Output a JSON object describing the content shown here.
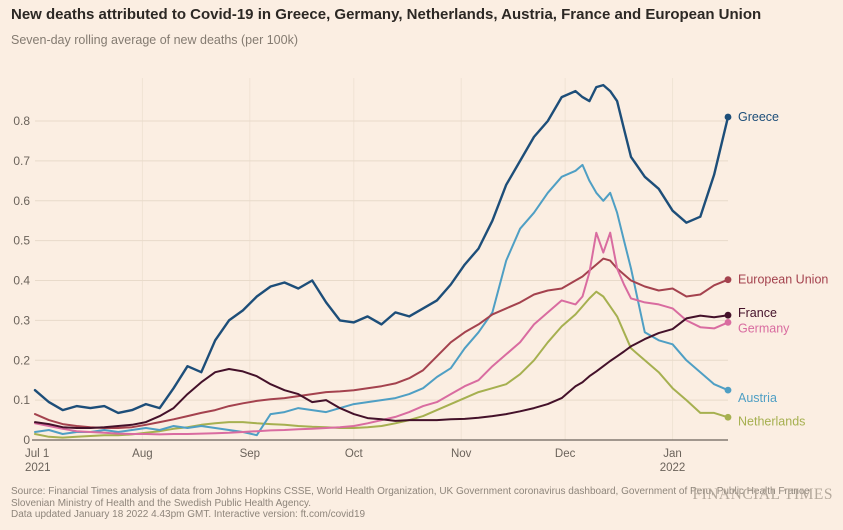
{
  "chart_data": {
    "type": "line",
    "title": "New deaths attributed to Covid-19 in Greece, Germany, Netherlands, Austria, France and European Union",
    "subtitle": "Seven-day rolling average of new deaths (per 100k)",
    "x_range": [
      "2021-07-01",
      "2022-01-17"
    ],
    "x_days": [
      0,
      4,
      8,
      12,
      16,
      20,
      24,
      28,
      32,
      36,
      40,
      44,
      48,
      52,
      56,
      60,
      64,
      68,
      72,
      76,
      80,
      84,
      88,
      92,
      96,
      100,
      104,
      108,
      112,
      116,
      120,
      124,
      128,
      132,
      136,
      140,
      144,
      148,
      152,
      156,
      158,
      160,
      162,
      164,
      166,
      168,
      170,
      172,
      176,
      180,
      184,
      188,
      192,
      196,
      200
    ],
    "x_ticks": [
      {
        "day": 0,
        "line1": "Jul 1",
        "line2": "2021"
      },
      {
        "day": 31,
        "line1": "Aug"
      },
      {
        "day": 62,
        "line1": "Sep"
      },
      {
        "day": 92,
        "line1": "Oct"
      },
      {
        "day": 123,
        "line1": "Nov"
      },
      {
        "day": 153,
        "line1": "Dec"
      },
      {
        "day": 184,
        "line1": "Jan",
        "line2": "2022"
      }
    ],
    "ylim": [
      0,
      0.9
    ],
    "y_ticks": [
      0,
      0.1,
      0.2,
      0.3,
      0.4,
      0.5,
      0.6,
      0.7,
      0.8
    ],
    "grid": true,
    "legend_position": "right-of-line-ends",
    "series": [
      {
        "name": "Greece",
        "color": "#1D4E79",
        "values": [
          0.125,
          0.095,
          0.075,
          0.085,
          0.08,
          0.085,
          0.068,
          0.075,
          0.09,
          0.08,
          0.13,
          0.185,
          0.17,
          0.25,
          0.3,
          0.325,
          0.36,
          0.385,
          0.395,
          0.38,
          0.4,
          0.345,
          0.3,
          0.295,
          0.31,
          0.29,
          0.32,
          0.31,
          0.33,
          0.35,
          0.39,
          0.44,
          0.48,
          0.55,
          0.64,
          0.7,
          0.76,
          0.8,
          0.86,
          0.875,
          0.86,
          0.85,
          0.885,
          0.89,
          0.875,
          0.85,
          0.78,
          0.71,
          0.66,
          0.63,
          0.575,
          0.545,
          0.56,
          0.665,
          0.81
        ]
      },
      {
        "name": "European Union",
        "color": "#A4424E",
        "values": [
          0.065,
          0.05,
          0.04,
          0.035,
          0.032,
          0.03,
          0.03,
          0.032,
          0.038,
          0.045,
          0.052,
          0.06,
          0.068,
          0.075,
          0.085,
          0.092,
          0.098,
          0.102,
          0.105,
          0.11,
          0.115,
          0.12,
          0.122,
          0.125,
          0.13,
          0.135,
          0.142,
          0.155,
          0.175,
          0.21,
          0.245,
          0.27,
          0.29,
          0.315,
          0.33,
          0.345,
          0.365,
          0.375,
          0.38,
          0.4,
          0.41,
          0.425,
          0.44,
          0.455,
          0.45,
          0.43,
          0.415,
          0.4,
          0.385,
          0.375,
          0.38,
          0.36,
          0.365,
          0.388,
          0.402
        ]
      },
      {
        "name": "France",
        "color": "#44112A",
        "values": [
          0.045,
          0.04,
          0.032,
          0.03,
          0.03,
          0.032,
          0.035,
          0.038,
          0.045,
          0.06,
          0.08,
          0.115,
          0.145,
          0.17,
          0.178,
          0.172,
          0.16,
          0.14,
          0.125,
          0.115,
          0.095,
          0.1,
          0.08,
          0.065,
          0.055,
          0.052,
          0.048,
          0.05,
          0.05,
          0.05,
          0.052,
          0.053,
          0.056,
          0.06,
          0.065,
          0.072,
          0.08,
          0.09,
          0.105,
          0.135,
          0.145,
          0.16,
          0.172,
          0.185,
          0.198,
          0.21,
          0.222,
          0.235,
          0.253,
          0.268,
          0.278,
          0.305,
          0.312,
          0.308,
          0.313
        ]
      },
      {
        "name": "Germany",
        "color": "#D96CA0",
        "values": [
          0.042,
          0.035,
          0.028,
          0.022,
          0.02,
          0.018,
          0.016,
          0.015,
          0.015,
          0.014,
          0.015,
          0.015,
          0.016,
          0.017,
          0.018,
          0.02,
          0.022,
          0.024,
          0.025,
          0.027,
          0.028,
          0.03,
          0.032,
          0.035,
          0.042,
          0.05,
          0.058,
          0.07,
          0.085,
          0.095,
          0.115,
          0.135,
          0.15,
          0.185,
          0.215,
          0.245,
          0.29,
          0.32,
          0.35,
          0.34,
          0.36,
          0.42,
          0.52,
          0.47,
          0.52,
          0.43,
          0.39,
          0.355,
          0.345,
          0.34,
          0.33,
          0.3,
          0.283,
          0.28,
          0.295
        ]
      },
      {
        "name": "Austria",
        "color": "#4F9FC4",
        "values": [
          0.02,
          0.025,
          0.015,
          0.02,
          0.02,
          0.025,
          0.02,
          0.025,
          0.03,
          0.025,
          0.035,
          0.03,
          0.035,
          0.03,
          0.025,
          0.02,
          0.012,
          0.065,
          0.07,
          0.08,
          0.075,
          0.07,
          0.08,
          0.09,
          0.095,
          0.1,
          0.105,
          0.115,
          0.13,
          0.158,
          0.18,
          0.23,
          0.27,
          0.32,
          0.45,
          0.53,
          0.57,
          0.62,
          0.66,
          0.675,
          0.69,
          0.65,
          0.62,
          0.6,
          0.62,
          0.57,
          0.5,
          0.43,
          0.27,
          0.25,
          0.24,
          0.2,
          0.17,
          0.14,
          0.125
        ]
      },
      {
        "name": "Netherlands",
        "color": "#A6B050",
        "values": [
          0.015,
          0.008,
          0.006,
          0.008,
          0.01,
          0.012,
          0.012,
          0.014,
          0.018,
          0.022,
          0.028,
          0.032,
          0.038,
          0.042,
          0.045,
          0.045,
          0.042,
          0.04,
          0.038,
          0.035,
          0.033,
          0.032,
          0.03,
          0.03,
          0.032,
          0.035,
          0.042,
          0.05,
          0.06,
          0.075,
          0.09,
          0.105,
          0.12,
          0.13,
          0.14,
          0.165,
          0.2,
          0.245,
          0.285,
          0.315,
          0.335,
          0.355,
          0.372,
          0.36,
          0.335,
          0.31,
          0.27,
          0.23,
          0.2,
          0.17,
          0.13,
          0.1,
          0.068,
          0.068,
          0.057
        ]
      }
    ]
  },
  "footer": {
    "source_line1": "Source: Financial Times analysis of data from Johns Hopkins CSSE, World Health Organization, UK Government coronavirus dashboard, Government of Peru, Public Health France,",
    "source_line2": "Slovenian Ministry of Health and the Swedish Public Health Agency.",
    "source_line3": "Data updated January 18 2022 4.43pm GMT. Interactive version: ft.com/covid19",
    "logo": "FINANCIAL TIMES"
  },
  "colors": {
    "background": "#FBEEE2",
    "gridline": "#E8DACA",
    "month_gridline": "#F0E3D4",
    "axis": "#6B635B",
    "title_text": "#2C2824",
    "muted_text": "#847B71",
    "source_text": "#8E857B",
    "logo_text": "#B4A99C"
  }
}
